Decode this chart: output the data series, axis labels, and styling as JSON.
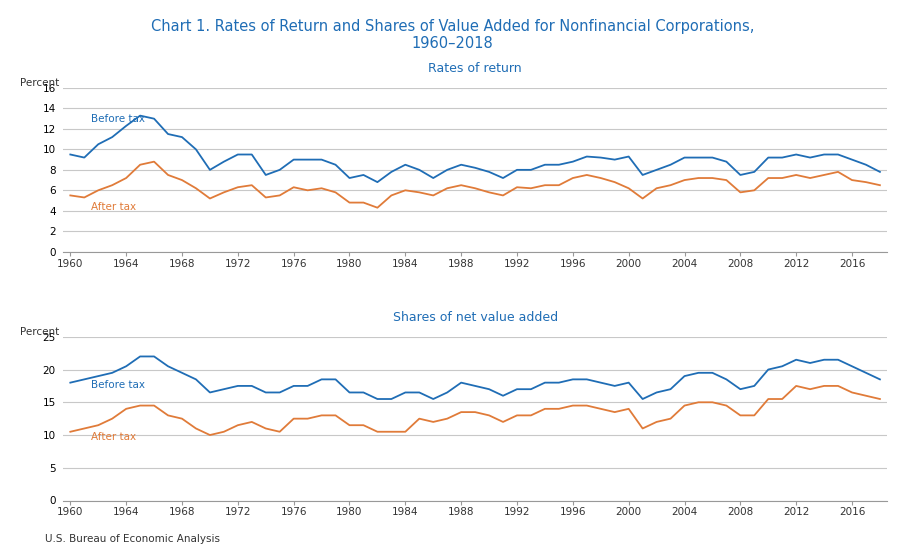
{
  "title_line1": "Chart 1. Rates of Return and Shares of Value Added for Nonfinancial Corporations,",
  "title_line2": "1960–2018",
  "title_color": "#1f6db5",
  "subtitle1": "Rates of return",
  "subtitle2": "Shares of net value added",
  "subtitle_color": "#1f6db5",
  "source": "U.S. Bureau of Economic Analysis",
  "blue_color": "#1f6db5",
  "orange_color": "#e07b39",
  "grid_color": "#c8c8c8",
  "years": [
    1960,
    1961,
    1962,
    1963,
    1964,
    1965,
    1966,
    1967,
    1968,
    1969,
    1970,
    1971,
    1972,
    1973,
    1974,
    1975,
    1976,
    1977,
    1978,
    1979,
    1980,
    1981,
    1982,
    1983,
    1984,
    1985,
    1986,
    1987,
    1988,
    1989,
    1990,
    1991,
    1992,
    1993,
    1994,
    1995,
    1996,
    1997,
    1998,
    1999,
    2000,
    2001,
    2002,
    2003,
    2004,
    2005,
    2006,
    2007,
    2008,
    2009,
    2010,
    2011,
    2012,
    2013,
    2014,
    2015,
    2016,
    2017,
    2018
  ],
  "ror_before_tax": [
    9.5,
    9.2,
    10.5,
    11.2,
    12.3,
    13.3,
    13.0,
    11.5,
    11.2,
    10.0,
    8.0,
    8.8,
    9.5,
    9.5,
    7.5,
    8.0,
    9.0,
    9.0,
    9.0,
    8.5,
    7.2,
    7.5,
    6.8,
    7.8,
    8.5,
    8.0,
    7.2,
    8.0,
    8.5,
    8.2,
    7.8,
    7.2,
    8.0,
    8.0,
    8.5,
    8.5,
    8.8,
    9.3,
    9.2,
    9.0,
    9.3,
    7.5,
    8.0,
    8.5,
    9.2,
    9.2,
    9.2,
    8.8,
    7.5,
    7.8,
    9.2,
    9.2,
    9.5,
    9.2,
    9.5,
    9.5,
    9.0,
    8.5,
    7.8
  ],
  "ror_after_tax": [
    5.5,
    5.3,
    6.0,
    6.5,
    7.2,
    8.5,
    8.8,
    7.5,
    7.0,
    6.2,
    5.2,
    5.8,
    6.3,
    6.5,
    5.3,
    5.5,
    6.3,
    6.0,
    6.2,
    5.8,
    4.8,
    4.8,
    4.3,
    5.5,
    6.0,
    5.8,
    5.5,
    6.2,
    6.5,
    6.2,
    5.8,
    5.5,
    6.3,
    6.2,
    6.5,
    6.5,
    7.2,
    7.5,
    7.2,
    6.8,
    6.2,
    5.2,
    6.2,
    6.5,
    7.0,
    7.2,
    7.2,
    7.0,
    5.8,
    6.0,
    7.2,
    7.2,
    7.5,
    7.2,
    7.5,
    7.8,
    7.0,
    6.8,
    6.5
  ],
  "va_before_tax": [
    18.0,
    18.5,
    19.0,
    19.5,
    20.5,
    22.0,
    22.0,
    20.5,
    19.5,
    18.5,
    16.5,
    17.0,
    17.5,
    17.5,
    16.5,
    16.5,
    17.5,
    17.5,
    18.5,
    18.5,
    16.5,
    16.5,
    15.5,
    15.5,
    16.5,
    16.5,
    15.5,
    16.5,
    18.0,
    17.5,
    17.0,
    16.0,
    17.0,
    17.0,
    18.0,
    18.0,
    18.5,
    18.5,
    18.0,
    17.5,
    18.0,
    15.5,
    16.5,
    17.0,
    19.0,
    19.5,
    19.5,
    18.5,
    17.0,
    17.5,
    20.0,
    20.5,
    21.5,
    21.0,
    21.5,
    21.5,
    20.5,
    19.5,
    18.5
  ],
  "va_after_tax": [
    10.5,
    11.0,
    11.5,
    12.5,
    14.0,
    14.5,
    14.5,
    13.0,
    12.5,
    11.0,
    10.0,
    10.5,
    11.5,
    12.0,
    11.0,
    10.5,
    12.5,
    12.5,
    13.0,
    13.0,
    11.5,
    11.5,
    10.5,
    10.5,
    10.5,
    12.5,
    12.0,
    12.5,
    13.5,
    13.5,
    13.0,
    12.0,
    13.0,
    13.0,
    14.0,
    14.0,
    14.5,
    14.5,
    14.0,
    13.5,
    14.0,
    11.0,
    12.0,
    12.5,
    14.5,
    15.0,
    15.0,
    14.5,
    13.0,
    13.0,
    15.5,
    15.5,
    17.5,
    17.0,
    17.5,
    17.5,
    16.5,
    16.0,
    15.5
  ],
  "xticks": [
    1960,
    1964,
    1968,
    1972,
    1976,
    1980,
    1984,
    1988,
    1992,
    1996,
    2000,
    2004,
    2008,
    2012,
    2016
  ]
}
